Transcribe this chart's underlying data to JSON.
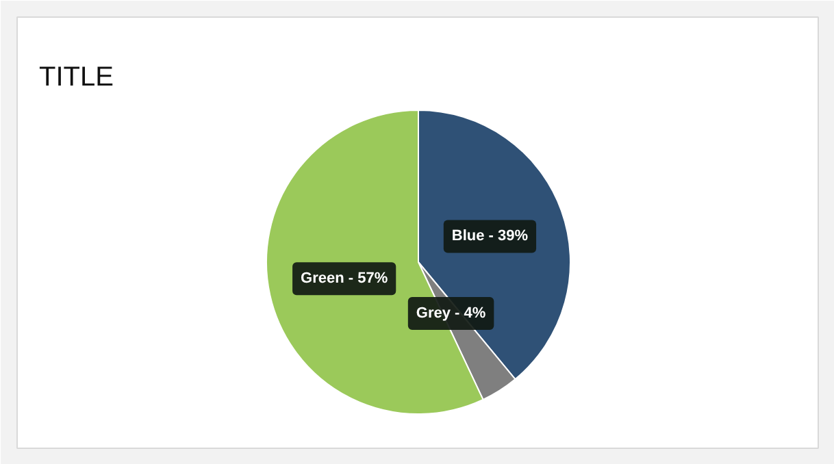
{
  "chart_data": {
    "type": "pie",
    "title": "TITLE",
    "categories": [
      "Blue",
      "Grey",
      "Green"
    ],
    "values": [
      39,
      4,
      57
    ],
    "colors": [
      "#2f5176",
      "#7f7f7f",
      "#9bc95a"
    ],
    "value_labels": [
      "39%",
      "4%",
      "57%"
    ]
  }
}
